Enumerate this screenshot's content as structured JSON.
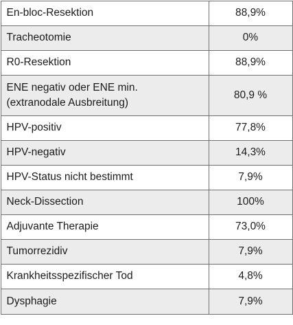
{
  "colors": {
    "shaded_row": "#ececec",
    "border": "#6f6f6f",
    "text": "#1a1a1a"
  },
  "rows": [
    {
      "label": "En-bloc-Resektion",
      "value": "88,9%"
    },
    {
      "label": "Tracheotomie",
      "value": "0%"
    },
    {
      "label": "R0-Resektion",
      "value": "88,9%"
    },
    {
      "label_line1": "ENE negativ oder ENE min.",
      "label_line2": "(extranodale Ausbreitung)",
      "value": "80,9 %"
    },
    {
      "label": "HPV-positiv",
      "value": "77,8%"
    },
    {
      "label": "HPV-negativ",
      "value": "14,3%"
    },
    {
      "label": "HPV-Status nicht bestimmt",
      "value": "7,9%"
    },
    {
      "label": "Neck-Dissection",
      "value": "100%"
    },
    {
      "label": "Adjuvante Therapie",
      "value": "73,0%"
    },
    {
      "label": "Tumorrezidiv",
      "value": "7,9%"
    },
    {
      "label": "Krankheitsspezifischer Tod",
      "value": "4,8%"
    },
    {
      "label": "Dysphagie",
      "value": "7,9%"
    }
  ]
}
